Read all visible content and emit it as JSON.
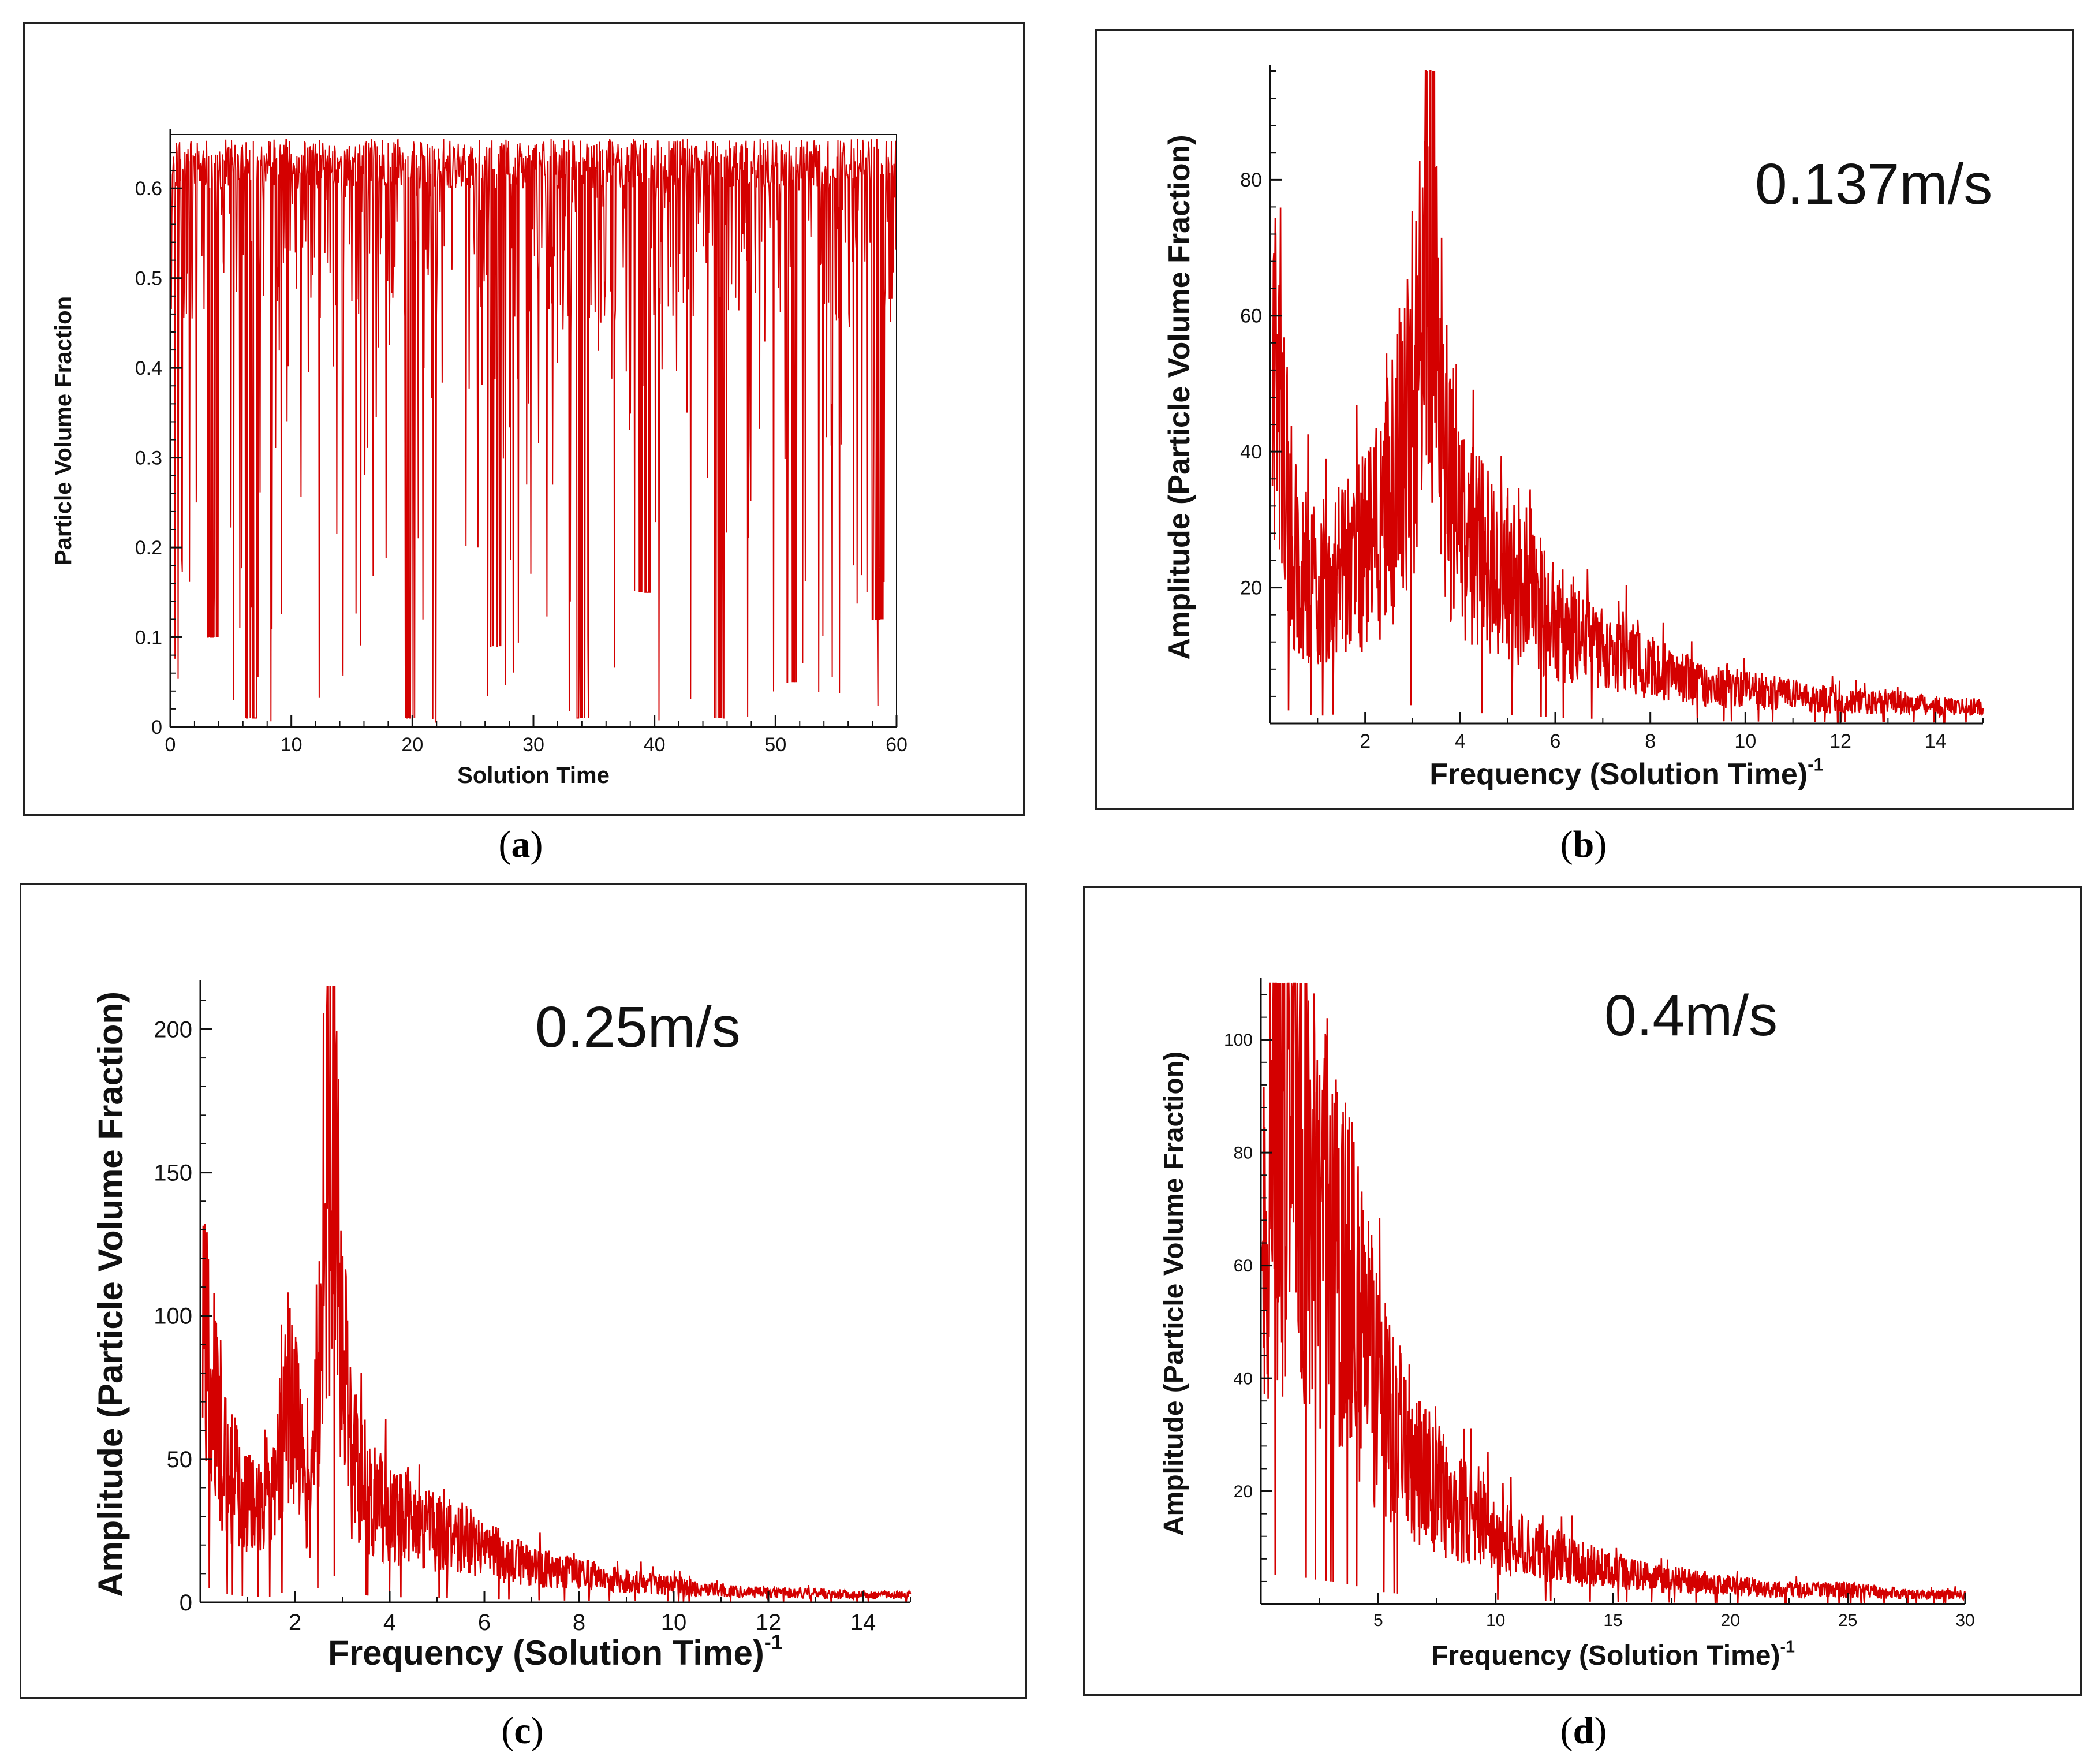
{
  "colors": {
    "series": "#d40000",
    "axis": "#111111"
  },
  "chart_data": [
    {
      "id": "a",
      "type": "line",
      "caption": "a",
      "title": "",
      "xlabel": "Solution Time",
      "ylabel": "Particle Volume Fraction",
      "xlim": [
        0,
        60
      ],
      "ylim": [
        0,
        0.66
      ],
      "xticks": [
        0,
        10,
        20,
        30,
        40,
        50,
        60
      ],
      "xtick_labels": [
        "0",
        "10",
        "20",
        "30",
        "40",
        "50",
        "60"
      ],
      "yticks": [
        0,
        0.1,
        0.2,
        0.3,
        0.4,
        0.5,
        0.6
      ],
      "ytick_labels": [
        "0",
        "0.1",
        "0.2",
        "0.3",
        "0.4",
        "0.5",
        "0.6"
      ],
      "series": [
        {
          "name": "Particle Volume Fraction",
          "description": "rapidly fluctuating signal, baseline ~0.6-0.65 with frequent dips toward 0",
          "values": [
            0.62,
            0.58,
            0.64,
            0.1,
            0.63,
            0.61,
            0.01,
            0.6,
            0.65,
            0.55,
            0.62,
            0.4,
            0.63,
            0.64,
            0.2,
            0.6,
            0.62,
            0.5,
            0.64,
            0.01,
            0.63,
            0.58,
            0.62,
            0.3,
            0.64,
            0.61,
            0.09,
            0.63,
            0.6,
            0.65,
            0.45,
            0.62,
            0.64,
            0.01,
            0.6,
            0.63,
            0.55,
            0.62,
            0.15,
            0.64,
            0.61,
            0.6,
            0.35,
            0.63,
            0.01,
            0.62,
            0.64,
            0.5,
            0.6,
            0.63,
            0.05,
            0.62,
            0.64,
            0.58,
            0.3,
            0.63,
            0.62,
            0.12,
            0.64,
            0.6
          ]
        }
      ]
    },
    {
      "id": "b",
      "type": "line",
      "caption": "b",
      "annotation": "0.137m/s",
      "xlabel": "Frequency (Solution Time)",
      "xlabel_superscript": "-1",
      "ylabel": "Amplitude (Particle Volume Fraction)",
      "xlim": [
        0,
        15
      ],
      "ylim": [
        0,
        96
      ],
      "xticks": [
        2,
        4,
        6,
        8,
        10,
        12,
        14
      ],
      "xtick_labels": [
        "2",
        "4",
        "6",
        "8",
        "10",
        "12",
        "14"
      ],
      "yticks": [
        20,
        40,
        60,
        80
      ],
      "ytick_labels": [
        "20",
        "40",
        "60",
        "80"
      ],
      "series": [
        {
          "name": "Amplitude spectrum",
          "description": "broad peak near f=3.3 (max ~95), decaying toward ~3 at f=15",
          "x": [
            0.1,
            0.5,
            1,
            1.5,
            2,
            2.5,
            3,
            3.3,
            3.6,
            4,
            4.5,
            5,
            5.5,
            6,
            6.5,
            7,
            7.5,
            8,
            9,
            10,
            11,
            12,
            13,
            14,
            15
          ],
          "values": [
            60,
            30,
            22,
            28,
            30,
            38,
            55,
            95,
            50,
            35,
            30,
            25,
            22,
            18,
            15,
            13,
            12,
            10,
            7,
            6,
            5,
            4,
            4,
            3,
            3
          ]
        }
      ]
    },
    {
      "id": "c",
      "type": "line",
      "caption": "c",
      "annotation": "0.25m/s",
      "xlabel": "Frequency (Solution Time)",
      "xlabel_superscript": "-1",
      "ylabel": "Amplitude (Particle Volume Fraction)",
      "xlim": [
        0,
        15
      ],
      "ylim": [
        0,
        215
      ],
      "xticks": [
        2,
        4,
        6,
        8,
        10,
        12,
        14
      ],
      "xtick_labels": [
        "2",
        "4",
        "6",
        "8",
        "10",
        "12",
        "14"
      ],
      "yticks": [
        0,
        50,
        100,
        150,
        200
      ],
      "ytick_labels": [
        "0",
        "50",
        "100",
        "150",
        "200"
      ],
      "series": [
        {
          "name": "Amplitude spectrum",
          "description": "sharp peak at f~2.75 (max ~215), secondary spike ~90 at f~1.9, decaying toward ~3 at f=15",
          "x": [
            0.1,
            0.5,
            1,
            1.5,
            1.9,
            2.3,
            2.6,
            2.75,
            2.9,
            3.2,
            3.6,
            4,
            4.5,
            5,
            5.5,
            6,
            7,
            8,
            9,
            10,
            11,
            12,
            13,
            14,
            15
          ],
          "values": [
            110,
            60,
            40,
            38,
            90,
            40,
            135,
            215,
            155,
            60,
            45,
            38,
            32,
            30,
            28,
            22,
            15,
            12,
            9,
            7,
            5,
            4,
            4,
            3,
            3
          ]
        }
      ]
    },
    {
      "id": "d",
      "type": "line",
      "caption": "d",
      "annotation": "0.4m/s",
      "xlabel": "Frequency (Solution Time)",
      "xlabel_superscript": "-1",
      "ylabel": "Amplitude (Particle Volume Fraction)",
      "xlim": [
        0,
        30
      ],
      "ylim": [
        0,
        110
      ],
      "xticks": [
        5,
        10,
        15,
        20,
        25,
        30
      ],
      "xtick_labels": [
        "5",
        "10",
        "15",
        "20",
        "25",
        "30"
      ],
      "yticks": [
        20,
        40,
        60,
        80,
        100
      ],
      "ytick_labels": [
        "20",
        "40",
        "60",
        "80",
        "100"
      ],
      "series": [
        {
          "name": "Amplitude spectrum",
          "description": "highest near f~1-2 (max ~110), monotonic decay to ~2 at f=30",
          "x": [
            0.2,
            1,
            1.5,
            2,
            3,
            4,
            5,
            6,
            7,
            8,
            10,
            12,
            15,
            18,
            20,
            22,
            25,
            28,
            30
          ],
          "values": [
            100,
            105,
            110,
            90,
            80,
            65,
            45,
            35,
            28,
            22,
            15,
            11,
            7,
            5,
            4,
            3,
            3,
            2,
            2
          ]
        }
      ]
    }
  ]
}
